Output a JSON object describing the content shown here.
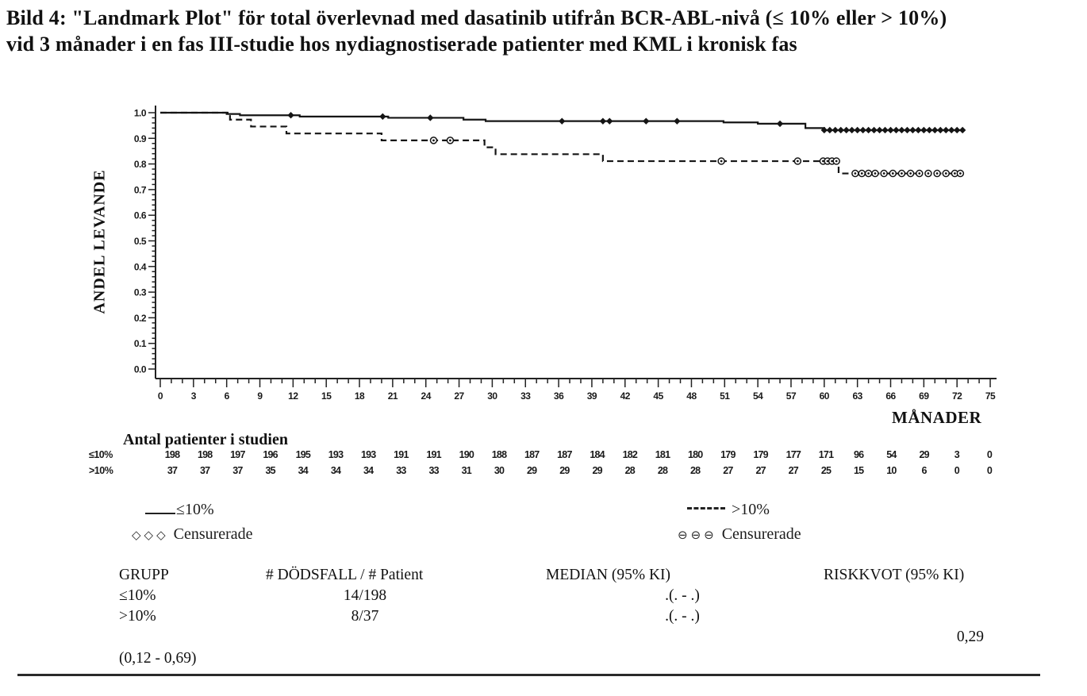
{
  "title": {
    "line1": "Bild 4: \"Landmark Plot\" för total överlevnad med dasatinib utifrån BCR-ABL-nivå (≤ 10% eller > 10%)",
    "line2": "vid 3 månader i en fas III-studie hos nydiagnostiserade patienter med KML i kronisk fas"
  },
  "chart_data": {
    "type": "line",
    "subtype": "kaplan-meier-step",
    "xlabel": "MÅNADER",
    "ylabel": "ANDEL LEVANDE",
    "xlim": [
      0,
      75
    ],
    "ylim": [
      0.0,
      1.0
    ],
    "xticks": [
      0,
      3,
      6,
      9,
      12,
      15,
      18,
      21,
      24,
      27,
      30,
      33,
      36,
      39,
      42,
      45,
      48,
      51,
      54,
      57,
      60,
      63,
      66,
      69,
      72,
      75
    ],
    "yticks": [
      1.0,
      0.9,
      0.8,
      0.7,
      0.6,
      0.5,
      0.4,
      0.3,
      0.2,
      0.1,
      0.0
    ],
    "grid": false,
    "legend_position": "below",
    "series": [
      {
        "name": "≤10%",
        "line": "solid",
        "marker": "diamond",
        "color": "#151515",
        "steps": [
          [
            0,
            1.0
          ],
          [
            6.0,
            0.995
          ],
          [
            7.2,
            0.99
          ],
          [
            12.6,
            0.985
          ],
          [
            20.6,
            0.98
          ],
          [
            27.4,
            0.973
          ],
          [
            29.4,
            0.967
          ],
          [
            50.9,
            0.962
          ],
          [
            54.0,
            0.957
          ],
          [
            58.3,
            0.94
          ],
          [
            60.0,
            0.932
          ],
          [
            72.6,
            0.932
          ]
        ],
        "censor_months": [
          11.8,
          20.1,
          24.4,
          36.3,
          40.0,
          40.6,
          43.9,
          46.7,
          56.0,
          60.0,
          60.5,
          61.0,
          61.5,
          62.0,
          62.5,
          63.0,
          63.5,
          64.0,
          64.5,
          65.0,
          65.5,
          66.0,
          66.5,
          67.0,
          67.5,
          68.0,
          68.5,
          69.0,
          69.5,
          70.0,
          70.5,
          71.0,
          71.5,
          72.0,
          72.5
        ]
      },
      {
        "name": ">10%",
        "line": "dashed",
        "marker": "circle",
        "color": "#151515",
        "steps": [
          [
            0,
            1.0
          ],
          [
            6.3,
            0.973
          ],
          [
            8.2,
            0.946
          ],
          [
            11.4,
            0.919
          ],
          [
            20.0,
            0.892
          ],
          [
            29.3,
            0.865
          ],
          [
            30.3,
            0.838
          ],
          [
            40.0,
            0.811
          ],
          [
            61.3,
            0.763
          ],
          [
            72.3,
            0.763
          ]
        ],
        "censor_months": [
          24.7,
          26.2,
          50.7,
          57.6,
          59.9,
          60.3,
          60.7,
          61.1,
          62.8,
          63.4,
          64.0,
          64.6,
          65.4,
          66.2,
          67.0,
          67.8,
          68.6,
          69.4,
          70.2,
          71.0,
          71.8,
          72.3
        ]
      }
    ],
    "at_risk": {
      "title": "Antal patienter i studien",
      "months": [
        0,
        3,
        6,
        9,
        12,
        15,
        18,
        21,
        24,
        27,
        30,
        33,
        36,
        39,
        42,
        45,
        48,
        51,
        54,
        57,
        60,
        63,
        66,
        69,
        72,
        75
      ],
      "rows": [
        {
          "label": "≤10%",
          "values": [
            198,
            198,
            197,
            196,
            195,
            193,
            193,
            191,
            191,
            190,
            188,
            187,
            187,
            184,
            182,
            181,
            180,
            179,
            179,
            177,
            171,
            96,
            54,
            29,
            3,
            0
          ]
        },
        {
          "label": ">10%",
          "values": [
            37,
            37,
            37,
            35,
            34,
            34,
            34,
            33,
            33,
            31,
            30,
            29,
            29,
            29,
            28,
            28,
            28,
            27,
            27,
            27,
            25,
            15,
            10,
            6,
            0,
            0
          ]
        }
      ]
    }
  },
  "legend": {
    "series1": {
      "label": "≤10%"
    },
    "series2": {
      "label": ">10%"
    },
    "censored1": {
      "marker": "◇◇◇",
      "label": "Censurerade"
    },
    "censored2": {
      "marker": "⊖⊖⊖",
      "label": "Censurerade"
    }
  },
  "stats_table": {
    "headers": [
      "GRUPP",
      "# DÖDSFALL / # Patient",
      "MEDIAN (95% KI)",
      "RISKKVOT (95% KI)"
    ],
    "rows": [
      {
        "grupp": "≤10%",
        "dodsfall": "14/198",
        "median": ".(. - .)"
      },
      {
        "grupp": ">10%",
        "dodsfall": "8/37",
        "median": ".(. - .)"
      }
    ],
    "riskkvot_value": "0,29",
    "riskkvot_ci": "(0,12 - 0,69)"
  }
}
